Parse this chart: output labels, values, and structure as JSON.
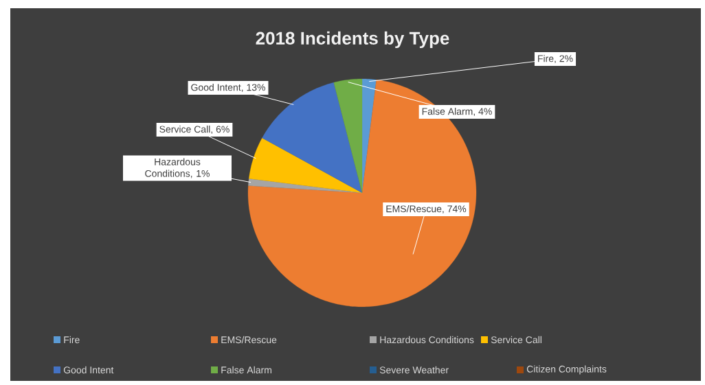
{
  "chart_data": {
    "type": "pie",
    "title": "2018 Incidents by Type",
    "categories": [
      "Fire",
      "EMS/Rescue",
      "Hazardous Conditions",
      "Service Call",
      "Good Intent",
      "False Alarm",
      "Severe Weather",
      "Citizen Complaints"
    ],
    "values": [
      2,
      74,
      1,
      6,
      13,
      4,
      0,
      0
    ],
    "colors": [
      "#5b9bd5",
      "#ed7d31",
      "#a5a5a5",
      "#ffc000",
      "#4472c4",
      "#70ad47",
      "#255e91",
      "#9e480e"
    ],
    "value_labels": [
      "Fire, 2%",
      "EMS/Rescue, 74%",
      "Hazardous Conditions, 1%",
      "Service Call, 6%",
      "Good Intent, 13%",
      "False Alarm, 4%",
      null,
      null
    ],
    "legend": "bottom"
  }
}
